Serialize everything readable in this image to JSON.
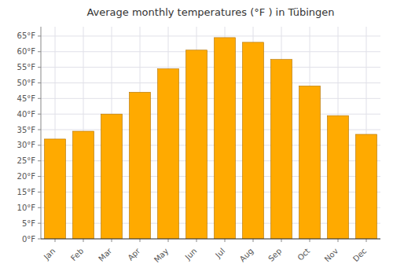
{
  "chart_data": {
    "type": "bar",
    "title": "Average monthly temperatures (°F ) in Tübingen",
    "categories": [
      "Jan",
      "Feb",
      "Mar",
      "Apr",
      "May",
      "Jun",
      "Jul",
      "Aug",
      "Sep",
      "Oct",
      "Nov",
      "Dec"
    ],
    "values": [
      32,
      34.5,
      40,
      47,
      54.5,
      60.5,
      64.5,
      63,
      57.5,
      49,
      39.5,
      33.5
    ],
    "color": "#FFAA00",
    "ylim": [
      0,
      68
    ],
    "yticks": [
      {
        "value": 0,
        "label": "0°F"
      },
      {
        "value": 5,
        "label": "5°F"
      },
      {
        "value": 10,
        "label": "10°F"
      },
      {
        "value": 15,
        "label": "15°F"
      },
      {
        "value": 20,
        "label": "20°F"
      },
      {
        "value": 25,
        "label": "25°F"
      },
      {
        "value": 30,
        "label": "30°F"
      },
      {
        "value": 35,
        "label": "35°F"
      },
      {
        "value": 40,
        "label": "40°F"
      },
      {
        "value": 45,
        "label": "45°F"
      },
      {
        "value": 50,
        "label": "50°F"
      },
      {
        "value": 55,
        "label": "55°F"
      },
      {
        "value": 60,
        "label": "60°F"
      },
      {
        "value": 65,
        "label": "65°F"
      }
    ],
    "grid": true
  }
}
